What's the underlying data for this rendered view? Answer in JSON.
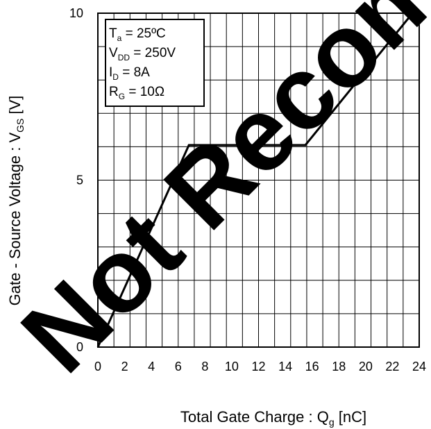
{
  "chart_data": {
    "type": "line",
    "xlabel": "Total Gate Charge : Q",
    "xlabel_sub": "g",
    "xlabel_unit": " [nC]",
    "ylabel": "Gate - Source Voltage : V",
    "ylabel_sub": "GS",
    "ylabel_unit": " [V]",
    "xlim": [
      0,
      24
    ],
    "ylim": [
      0,
      10
    ],
    "x_ticks": [
      0,
      2,
      4,
      6,
      8,
      10,
      12,
      14,
      16,
      18,
      20,
      22,
      24
    ],
    "y_ticks": [
      0,
      5,
      10
    ],
    "grid": true,
    "x_grid_step": 1.2,
    "y_grid_step": 1,
    "series": [
      {
        "x": [
          0,
          6.8,
          15.5,
          23.5
        ],
        "y": [
          0,
          6.05,
          6.05,
          10
        ]
      }
    ],
    "conditions": [
      {
        "main": "T",
        "sub": "a",
        "rest": " = 25ºC"
      },
      {
        "main": "V",
        "sub": "DD",
        "rest": " = 250V"
      },
      {
        "main": "I",
        "sub": "D",
        "rest": " = 8A"
      },
      {
        "main": "R",
        "sub": "G",
        "rest": " = 10Ω"
      }
    ],
    "conditions_location": "top-left",
    "watermark": "Not Recommended for New Designs",
    "colors": {
      "line": "#000000",
      "grid": "#000000",
      "watermark": "#000000"
    }
  }
}
